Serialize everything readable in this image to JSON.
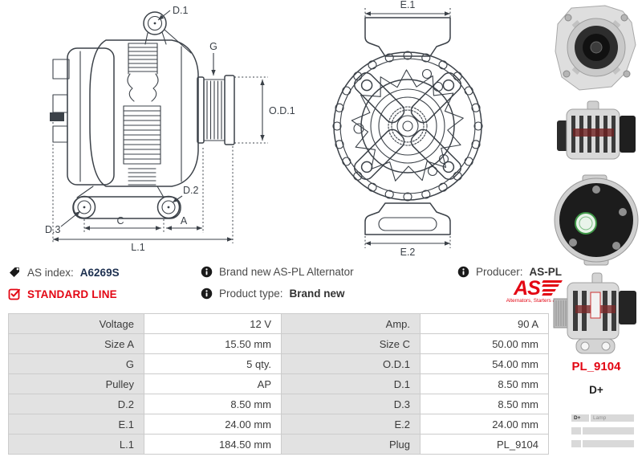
{
  "colors": {
    "red": "#e30613",
    "drawing_line": "#3b4148",
    "index_value": "#1d3050",
    "table_label_bg": "#e2e2e2",
    "table_border": "#cccccc",
    "text": "#454545"
  },
  "drawings": {
    "side_view": {
      "d1": "D.1",
      "g": "G",
      "od1": "O.D.1",
      "d2": "D.2",
      "d3": "D.3",
      "c": "C",
      "a": "A",
      "l1": "L.1"
    },
    "front_view": {
      "e1": "E.1",
      "e2": "E.2"
    }
  },
  "info": {
    "as_index_label": "AS index:",
    "as_index_value": "A6269S",
    "standard_line": "STANDARD LINE",
    "brand_new": "Brand new AS-PL Alternator",
    "product_type_label": "Product type:",
    "product_type_value": "Brand new",
    "producer_label": "Producer:",
    "producer_value": "AS-PL",
    "logo_text": "AS",
    "logo_tagline": "Alternators, Starters & Parts"
  },
  "spec_table": {
    "rows": [
      {
        "l1": "Voltage",
        "v1": "12 V",
        "l2": "Amp.",
        "v2": "90 A"
      },
      {
        "l1": "Size A",
        "v1": "15.50 mm",
        "l2": "Size C",
        "v2": "50.00 mm"
      },
      {
        "l1": "G",
        "v1": "5 qty.",
        "l2": "O.D.1",
        "v2": "54.00 mm"
      },
      {
        "l1": "Pulley",
        "v1": "AP",
        "l2": "D.1",
        "v2": "8.50 mm"
      },
      {
        "l1": "D.2",
        "v1": "8.50 mm",
        "l2": "D.3",
        "v2": "8.50 mm"
      },
      {
        "l1": "E.1",
        "v1": "24.00 mm",
        "l2": "E.2",
        "v2": "24.00 mm"
      },
      {
        "l1": "L.1",
        "v1": "184.50 mm",
        "l2": "Plug",
        "v2": "PL_9104"
      }
    ]
  },
  "sidebar": {
    "plug_code": "PL_9104",
    "terminal": "D+",
    "mini_table": {
      "col1": "D+",
      "col2": "Lamp"
    },
    "photos": [
      "alternator-front-photo",
      "alternator-side-photo",
      "alternator-rear-photo",
      "alternator-pulley-side-photo"
    ]
  }
}
